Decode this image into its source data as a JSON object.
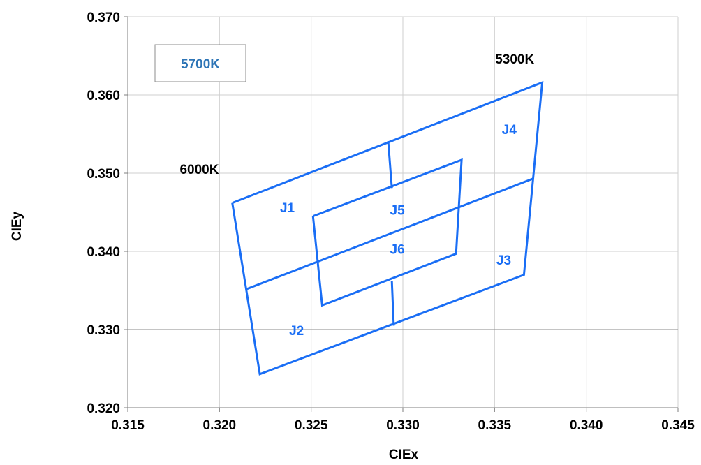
{
  "chart_data": {
    "type": "scatter",
    "title": "",
    "xlabel": "CIEx",
    "ylabel": "CIEy",
    "xlim": [
      0.315,
      0.345
    ],
    "ylim": [
      0.32,
      0.37
    ],
    "x_ticks": [
      "0.315",
      "0.320",
      "0.325",
      "0.330",
      "0.335",
      "0.340",
      "0.345"
    ],
    "y_ticks": [
      "0.320",
      "0.330",
      "0.340",
      "0.350",
      "0.360",
      "0.370"
    ],
    "grid": true,
    "line_color": "#1a6ef5",
    "legend": {
      "text": "5700K",
      "color": "#2e75b6",
      "placement": "top-left"
    },
    "cct_labels": [
      {
        "text": "6000K",
        "x": 0.3189,
        "y": 0.3499
      },
      {
        "text": "5300K",
        "x": 0.3361,
        "y": 0.364
      }
    ],
    "bin_labels": [
      {
        "text": "J1",
        "x": 0.3237,
        "y": 0.345
      },
      {
        "text": "J2",
        "x": 0.3242,
        "y": 0.3293
      },
      {
        "text": "J3",
        "x": 0.3355,
        "y": 0.3383
      },
      {
        "text": "J4",
        "x": 0.3358,
        "y": 0.355
      },
      {
        "text": "J5",
        "x": 0.3297,
        "y": 0.3447
      },
      {
        "text": "J6",
        "x": 0.3297,
        "y": 0.3397
      }
    ],
    "series": [
      {
        "values": [
          [
            0.3207,
            0.3462
          ],
          [
            0.3376,
            0.3616
          ],
          [
            0.3366,
            0.337
          ],
          [
            0.3222,
            0.3243
          ],
          [
            0.3207,
            0.3462
          ]
        ]
      },
      {
        "values": [
          [
            0.3215,
            0.3352
          ],
          [
            0.3371,
            0.3493
          ]
        ]
      },
      {
        "values": [
          [
            0.3292,
            0.3541
          ],
          [
            0.3294,
            0.3481
          ]
        ]
      },
      {
        "values": [
          [
            0.3294,
            0.3362
          ],
          [
            0.3295,
            0.3305
          ]
        ]
      },
      {
        "values": [
          [
            0.3251,
            0.3445
          ],
          [
            0.3332,
            0.3517
          ],
          [
            0.3329,
            0.3397
          ],
          [
            0.3256,
            0.3331
          ],
          [
            0.3251,
            0.3445
          ]
        ]
      }
    ]
  }
}
